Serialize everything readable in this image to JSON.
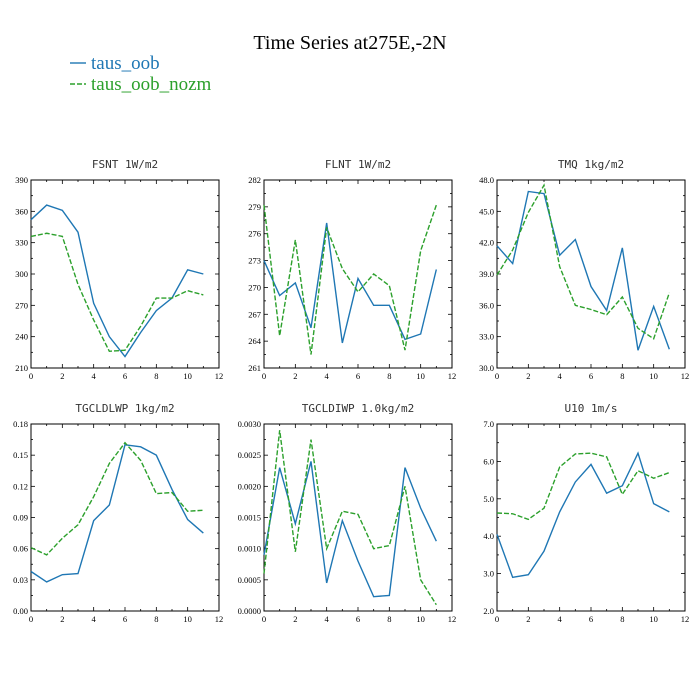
{
  "page": {
    "title": "Time Series at275E,-2N"
  },
  "colors": {
    "taus_oob": "#1f77b4",
    "taus_oob_nozm": "#2ca02c"
  },
  "legend": [
    {
      "name": "taus_oob",
      "color": "#1f77b4",
      "dash": "solid"
    },
    {
      "name": "taus_oob_nozm",
      "color": "#2ca02c",
      "dash": "dashed"
    }
  ],
  "chart_data": [
    {
      "type": "line",
      "title": "FSNT  1W/m2",
      "x": [
        0,
        1,
        2,
        3,
        4,
        5,
        6,
        7,
        8,
        9,
        10,
        11
      ],
      "xlim": [
        0,
        12
      ],
      "xticks": [
        0,
        2,
        4,
        6,
        8,
        10,
        12
      ],
      "ylim": [
        210,
        390
      ],
      "yticks": [
        210,
        240,
        270,
        300,
        330,
        360,
        390
      ],
      "ytick_labels": [
        "210",
        "240",
        "270",
        "300",
        "330",
        "360",
        "390"
      ],
      "series": [
        {
          "name": "taus_oob",
          "values": [
            352,
            366,
            361,
            340,
            272,
            240,
            221,
            244,
            265,
            277,
            304,
            300
          ]
        },
        {
          "name": "taus_oob_nozm",
          "values": [
            336,
            339,
            336,
            290,
            256,
            226,
            227,
            250,
            277,
            277,
            284,
            280
          ]
        }
      ]
    },
    {
      "type": "line",
      "title": "FLNT  1W/m2",
      "x": [
        0,
        1,
        2,
        3,
        4,
        5,
        6,
        7,
        8,
        9,
        10,
        11
      ],
      "xlim": [
        0,
        12
      ],
      "xticks": [
        0,
        2,
        4,
        6,
        8,
        10,
        12
      ],
      "ylim": [
        261,
        282
      ],
      "yticks": [
        261,
        264,
        267,
        270,
        273,
        276,
        279,
        282
      ],
      "ytick_labels": [
        "261",
        "264",
        "267",
        "270",
        "273",
        "276",
        "279",
        "282"
      ],
      "series": [
        {
          "name": "taus_oob",
          "values": [
            273,
            269.1,
            270.5,
            265.5,
            277.2,
            263.8,
            271,
            268,
            268,
            264.2,
            264.8,
            272
          ]
        },
        {
          "name": "taus_oob_nozm",
          "values": [
            279.2,
            264.6,
            275.3,
            262.5,
            276.7,
            272.1,
            269.5,
            271.5,
            270.2,
            263,
            274.1,
            279.2
          ]
        }
      ]
    },
    {
      "type": "line",
      "title": "TMQ  1kg/m2",
      "x": [
        0,
        1,
        2,
        3,
        4,
        5,
        6,
        7,
        8,
        9,
        10,
        11
      ],
      "xlim": [
        0,
        12
      ],
      "xticks": [
        0,
        2,
        4,
        6,
        8,
        10,
        12
      ],
      "ylim": [
        30,
        48
      ],
      "yticks": [
        30,
        33,
        36,
        39,
        42,
        45,
        48
      ],
      "ytick_labels": [
        "30.0",
        "33.0",
        "36.0",
        "39.0",
        "42.0",
        "45.0",
        "48.0"
      ],
      "series": [
        {
          "name": "taus_oob",
          "values": [
            41.7,
            40,
            46.9,
            46.7,
            40.8,
            42.3,
            37.8,
            35.5,
            41.5,
            31.7,
            35.9,
            31.8
          ]
        },
        {
          "name": "taus_oob_nozm",
          "values": [
            38.9,
            41.3,
            44.9,
            47.5,
            39.7,
            36,
            35.6,
            35.1,
            36.8,
            33.8,
            32.8,
            37.2
          ]
        }
      ]
    },
    {
      "type": "line",
      "title": "TGCLDLWP  1kg/m2",
      "x": [
        0,
        1,
        2,
        3,
        4,
        5,
        6,
        7,
        8,
        9,
        10,
        11
      ],
      "xlim": [
        0,
        12
      ],
      "xticks": [
        0,
        2,
        4,
        6,
        8,
        10,
        12
      ],
      "ylim": [
        0,
        0.18
      ],
      "yticks": [
        0,
        0.03,
        0.06,
        0.09,
        0.12,
        0.15,
        0.18
      ],
      "ytick_labels": [
        "0.00",
        "0.03",
        "0.06",
        "0.09",
        "0.12",
        "0.15",
        "0.18"
      ],
      "series": [
        {
          "name": "taus_oob",
          "values": [
            0.038,
            0.028,
            0.035,
            0.036,
            0.087,
            0.102,
            0.16,
            0.158,
            0.15,
            0.117,
            0.088,
            0.075
          ]
        },
        {
          "name": "taus_oob_nozm",
          "values": [
            0.061,
            0.054,
            0.07,
            0.083,
            0.11,
            0.142,
            0.162,
            0.145,
            0.113,
            0.114,
            0.096,
            0.097
          ]
        }
      ]
    },
    {
      "type": "line",
      "title": "TGCLDIWP  1.0kg/m2",
      "x": [
        0,
        1,
        2,
        3,
        4,
        5,
        6,
        7,
        8,
        9,
        10,
        11
      ],
      "xlim": [
        0,
        12
      ],
      "xticks": [
        0,
        2,
        4,
        6,
        8,
        10,
        12
      ],
      "ylim": [
        0,
        0.003
      ],
      "yticks": [
        0,
        0.0005,
        0.001,
        0.0015,
        0.002,
        0.0025,
        0.003
      ],
      "ytick_labels": [
        "0.0000",
        "0.0005",
        "0.0010",
        "0.0015",
        "0.0020",
        "0.0025",
        "0.0030"
      ],
      "series": [
        {
          "name": "taus_oob",
          "values": [
            0.0009,
            0.0023,
            0.0014,
            0.0024,
            0.00045,
            0.00145,
            0.0008,
            0.00023,
            0.00025,
            0.0023,
            0.00165,
            0.00112
          ]
        },
        {
          "name": "taus_oob_nozm",
          "values": [
            0.0006,
            0.0029,
            0.00095,
            0.00275,
            0.001,
            0.0016,
            0.00155,
            0.001,
            0.00105,
            0.002,
            0.0005,
            0.0001
          ]
        }
      ]
    },
    {
      "type": "line",
      "title": "U10  1m/s",
      "x": [
        0,
        1,
        2,
        3,
        4,
        5,
        6,
        7,
        8,
        9,
        10,
        11
      ],
      "xlim": [
        0,
        12
      ],
      "xticks": [
        0,
        2,
        4,
        6,
        8,
        10,
        12
      ],
      "ylim": [
        2,
        7
      ],
      "yticks": [
        2,
        3,
        4,
        5,
        6,
        7
      ],
      "ytick_labels": [
        "2.0",
        "3.0",
        "4.0",
        "5.0",
        "6.0",
        "7.0"
      ],
      "series": [
        {
          "name": "taus_oob",
          "values": [
            4.05,
            2.9,
            2.97,
            3.6,
            4.65,
            5.45,
            5.92,
            5.15,
            5.35,
            6.22,
            4.87,
            4.65
          ]
        },
        {
          "name": "taus_oob_nozm",
          "values": [
            4.62,
            4.6,
            4.45,
            4.75,
            5.85,
            6.2,
            6.22,
            6.12,
            5.12,
            5.75,
            5.55,
            5.7
          ]
        }
      ]
    }
  ]
}
